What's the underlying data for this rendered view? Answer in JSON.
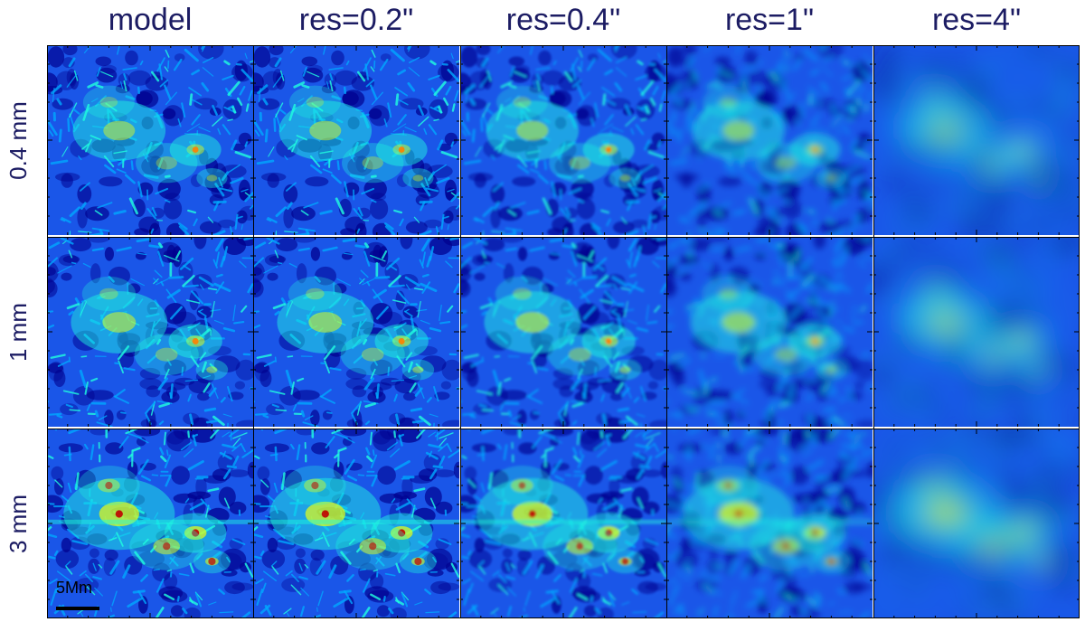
{
  "columns": [
    "model",
    "res=0.2\"",
    "res=0.4\"",
    "res=1\"",
    "res=4\""
  ],
  "rows": [
    "0.4 mm",
    "1 mm",
    "3 mm"
  ],
  "scalebar_label": "5Mm",
  "colormap": [
    "#00008f",
    "#0030ff",
    "#00a8ff",
    "#20ffdf",
    "#e8ff10",
    "#ff8000",
    "#c00000"
  ],
  "blur_levels": [
    0,
    0.3,
    1.2,
    3.5,
    14
  ],
  "intensity_levels": [
    0.45,
    0.5,
    0.7
  ]
}
